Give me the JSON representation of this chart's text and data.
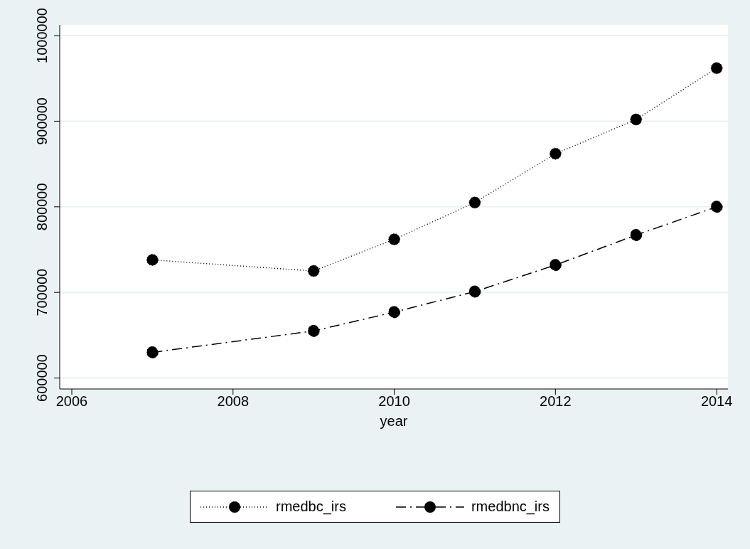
{
  "chart_data": {
    "type": "line",
    "xlabel": "year",
    "x": [
      2007,
      2009,
      2010,
      2011,
      2012,
      2013,
      2014
    ],
    "series": [
      {
        "name": "rmedbc_irs",
        "color": "#000000",
        "line_style": "dotted",
        "values": [
          738000,
          725000,
          762000,
          805000,
          862000,
          902000,
          962000
        ]
      },
      {
        "name": "rmedbnc_irs",
        "color": "#000000",
        "line_style": "dashdot",
        "values": [
          630000,
          655000,
          677000,
          701000,
          732000,
          767000,
          800000
        ]
      }
    ],
    "xlim": [
      2005.85,
      2014.14
    ],
    "xticks": [
      2006,
      2008,
      2010,
      2012,
      2014
    ],
    "ylim": [
      587200,
      1012500
    ],
    "yticks": [
      600000,
      700000,
      800000,
      900000,
      1000000
    ],
    "grid": "y",
    "legend": "bottom",
    "marker": "circle"
  }
}
